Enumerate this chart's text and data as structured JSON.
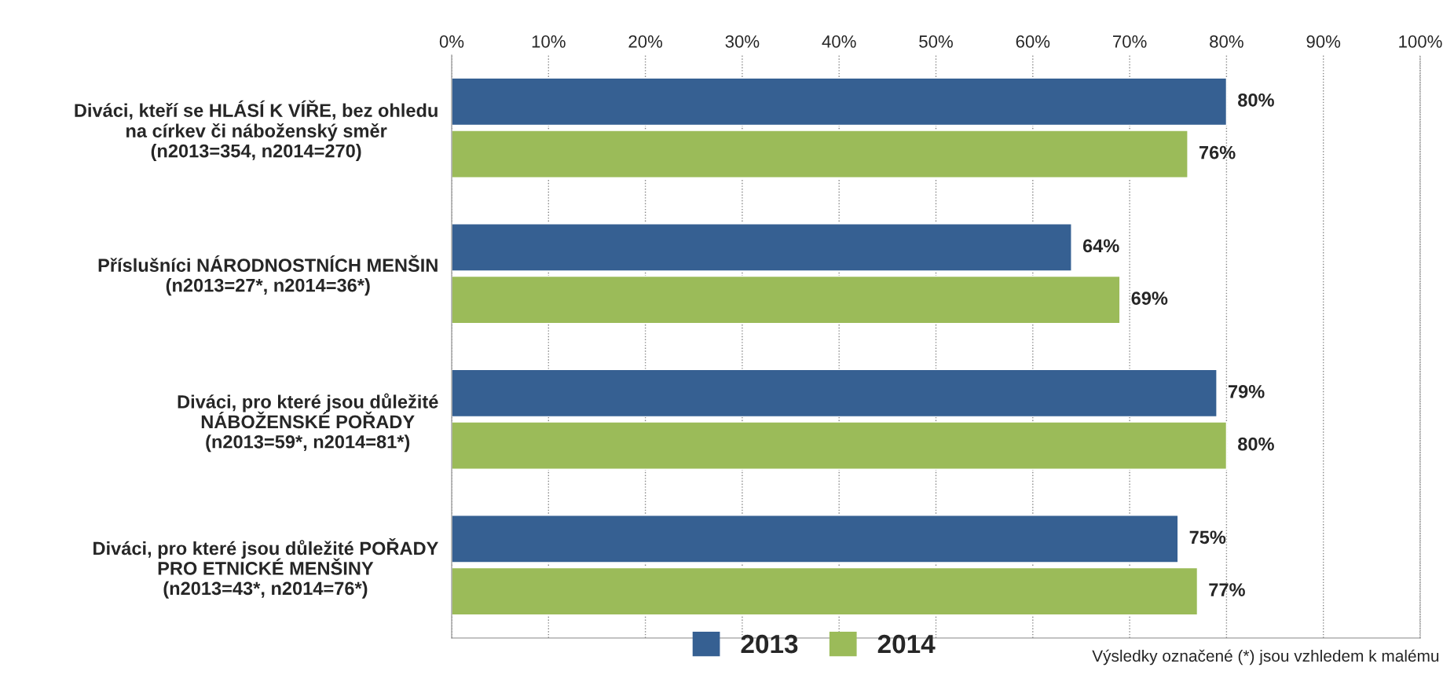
{
  "chart_data": {
    "type": "bar",
    "orientation": "horizontal",
    "categories": [
      "Diváci, kteří se HLÁSÍ K VÍŘE, bez ohledu\nna církev či náboženský směr\n(n2013=354, n2014=270)",
      "Příslušníci NÁRODNOSTNÍCH MENŠIN\n(n2013=27*, n2014=36*)",
      "Diváci, pro které jsou důležité\nNÁBOŽENSKÉ POŘADY\n(n2013=59*, n2014=81*)",
      "Diváci, pro které jsou důležité POŘADY\nPRO ETNICKÉ MENŠINY\n(n2013=43*, n2014=76*)"
    ],
    "series": [
      {
        "name": "2013",
        "color": "#366092",
        "values": [
          80,
          64,
          79,
          75
        ]
      },
      {
        "name": "2014",
        "color": "#9bbb59",
        "values": [
          76,
          69,
          80,
          77
        ]
      }
    ],
    "xlim": [
      0,
      100
    ],
    "xticks": [
      {
        "value": 0,
        "label": "0%"
      },
      {
        "value": 10,
        "label": "10%"
      },
      {
        "value": 20,
        "label": "20%"
      },
      {
        "value": 30,
        "label": "30%"
      },
      {
        "value": 40,
        "label": "40%"
      },
      {
        "value": 50,
        "label": "50%"
      },
      {
        "value": 60,
        "label": "60%"
      },
      {
        "value": 70,
        "label": "70%"
      },
      {
        "value": 80,
        "label": "80%"
      },
      {
        "value": 90,
        "label": "90%"
      },
      {
        "value": 100,
        "label": "100%"
      }
    ],
    "value_labels": [
      [
        "80%",
        "64%",
        "79%",
        "75%"
      ],
      [
        "76%",
        "69%",
        "80%",
        "77%"
      ]
    ],
    "grid": "x",
    "legend": "bottom",
    "annotations": [
      "Výsledky označené (*) jsou vzhledem k malému"
    ]
  }
}
